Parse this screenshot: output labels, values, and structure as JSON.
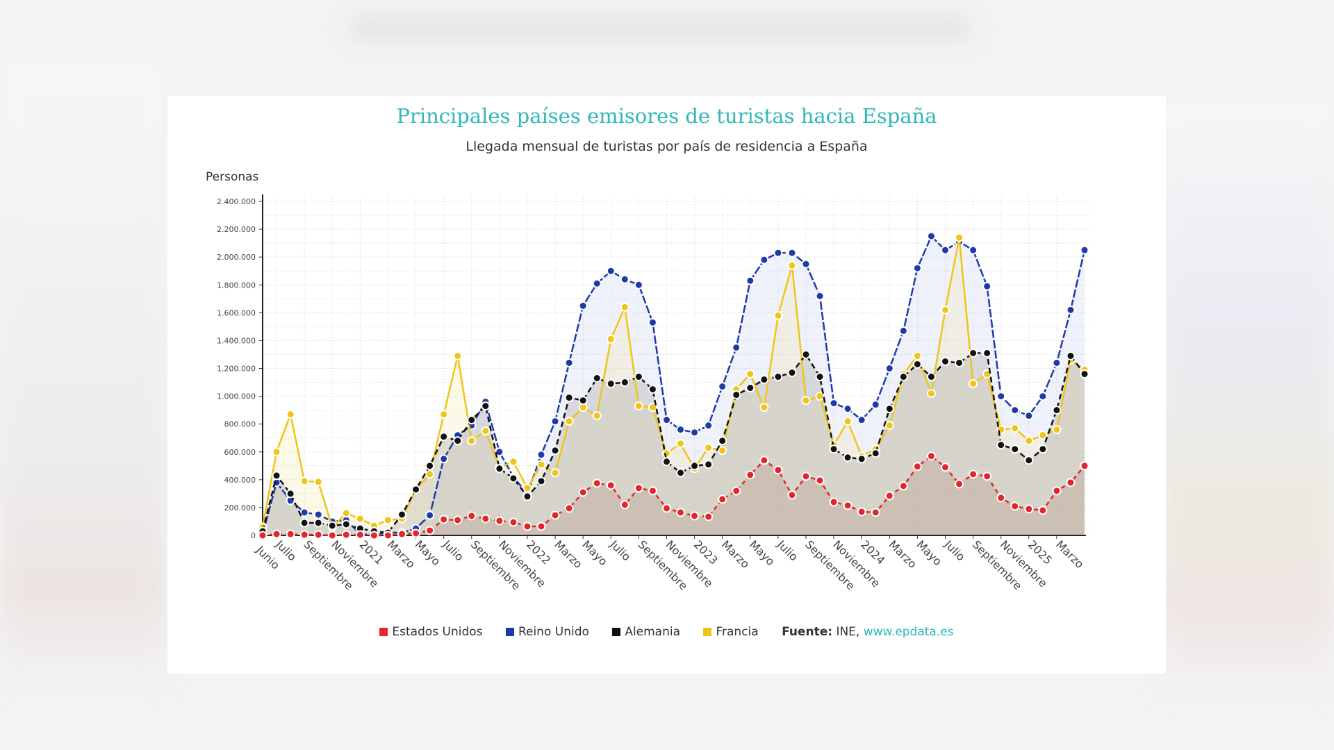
{
  "chart_data": {
    "type": "area",
    "title": "Principales países emisores de turistas hacia España",
    "subtitle": "Llegada mensual de turistas por país de residencia a España",
    "ylabel": "Personas",
    "xlabel": "",
    "ylim": [
      0,
      2400000
    ],
    "yticks": [
      "0",
      "200.000",
      "400.000",
      "600.000",
      "800.000",
      "1.000.000",
      "1.200.000",
      "1.400.000",
      "1.600.000",
      "1.800.000",
      "2.000.000",
      "2.200.000",
      "2.400.000"
    ],
    "grid": true,
    "legend_position": "bottom",
    "x": [
      "2020-06",
      "2020-07",
      "2020-08",
      "2020-09",
      "2020-10",
      "2020-11",
      "2020-12",
      "2021-01",
      "2021-02",
      "2021-03",
      "2021-04",
      "2021-05",
      "2021-06",
      "2021-07",
      "2021-08",
      "2021-09",
      "2021-10",
      "2021-11",
      "2021-12",
      "2022-01",
      "2022-02",
      "2022-03",
      "2022-04",
      "2022-05",
      "2022-06",
      "2022-07",
      "2022-08",
      "2022-09",
      "2022-10",
      "2022-11",
      "2022-12",
      "2023-01",
      "2023-02",
      "2023-03",
      "2023-04",
      "2023-05",
      "2023-06",
      "2023-07",
      "2023-08",
      "2023-09",
      "2023-10",
      "2023-11",
      "2023-12",
      "2024-01",
      "2024-02",
      "2024-03",
      "2024-04",
      "2024-05",
      "2024-06",
      "2024-07",
      "2024-08",
      "2024-09",
      "2024-10",
      "2024-11",
      "2024-12",
      "2025-01",
      "2025-02",
      "2025-03",
      "2025-04",
      "2025-05"
    ],
    "x_tick_labels": {
      "2020-06": "Junio",
      "2020-07": "Julio",
      "2020-09": "Septiembre",
      "2020-11": "Noviembre",
      "2021-01": "2021",
      "2021-03": "Marzo",
      "2021-05": "Mayo",
      "2021-07": "Julio",
      "2021-09": "Septiembre",
      "2021-11": "Noviembre",
      "2022-01": "2022",
      "2022-03": "Marzo",
      "2022-05": "Mayo",
      "2022-07": "Julio",
      "2022-09": "Septiembre",
      "2022-11": "Noviembre",
      "2023-01": "2023",
      "2023-03": "Marzo",
      "2023-05": "Mayo",
      "2023-07": "Julio",
      "2023-09": "Septiembre",
      "2023-11": "Noviembre",
      "2024-01": "2024",
      "2024-03": "Marzo",
      "2024-05": "Mayo",
      "2024-07": "Julio",
      "2024-09": "Septiembre",
      "2024-11": "Noviembre",
      "2025-01": "2025",
      "2025-03": "Marzo"
    },
    "series": [
      {
        "name": "Reino Unido",
        "color": "#1f3aa8",
        "values": [
          10000,
          380000,
          250000,
          165000,
          150000,
          100000,
          110000,
          10000,
          5000,
          20000,
          20000,
          50000,
          145000,
          550000,
          720000,
          790000,
          960000,
          600000,
          420000,
          300000,
          580000,
          820000,
          1240000,
          1650000,
          1810000,
          1900000,
          1840000,
          1800000,
          1530000,
          830000,
          760000,
          740000,
          790000,
          1070000,
          1350000,
          1830000,
          1980000,
          2030000,
          2030000,
          1950000,
          1720000,
          950000,
          910000,
          830000,
          940000,
          1200000,
          1470000,
          1920000,
          2150000,
          2050000,
          2110000,
          2050000,
          1790000,
          1000000,
          900000,
          860000,
          1000000,
          1240000,
          1620000,
          2050000
        ]
      },
      {
        "name": "Francia",
        "color": "#f0c419",
        "values": [
          60000,
          600000,
          870000,
          390000,
          385000,
          60000,
          160000,
          120000,
          70000,
          110000,
          120000,
          330000,
          440000,
          870000,
          1290000,
          680000,
          750000,
          490000,
          530000,
          340000,
          510000,
          450000,
          820000,
          920000,
          860000,
          1410000,
          1640000,
          930000,
          920000,
          590000,
          660000,
          480000,
          630000,
          610000,
          1050000,
          1160000,
          920000,
          1580000,
          1940000,
          970000,
          1000000,
          650000,
          820000,
          570000,
          620000,
          790000,
          1160000,
          1290000,
          1020000,
          1620000,
          2140000,
          1090000,
          1160000,
          760000,
          770000,
          680000,
          720000,
          760000,
          1260000,
          1190000
        ]
      },
      {
        "name": "Alemania",
        "color": "#111111",
        "values": [
          30000,
          430000,
          300000,
          90000,
          90000,
          70000,
          80000,
          50000,
          30000,
          20000,
          150000,
          330000,
          500000,
          710000,
          680000,
          830000,
          930000,
          480000,
          410000,
          280000,
          390000,
          610000,
          990000,
          970000,
          1130000,
          1090000,
          1100000,
          1140000,
          1050000,
          530000,
          450000,
          500000,
          510000,
          680000,
          1010000,
          1060000,
          1120000,
          1140000,
          1170000,
          1300000,
          1140000,
          620000,
          560000,
          550000,
          590000,
          910000,
          1140000,
          1230000,
          1140000,
          1250000,
          1240000,
          1310000,
          1310000,
          650000,
          620000,
          540000,
          620000,
          900000,
          1290000,
          1160000
        ]
      },
      {
        "name": "Estados Unidos",
        "color": "#e3262a",
        "values": [
          0,
          10000,
          10000,
          5000,
          5000,
          0,
          5000,
          5000,
          0,
          0,
          10000,
          15000,
          35000,
          115000,
          110000,
          140000,
          120000,
          105000,
          95000,
          65000,
          65000,
          145000,
          195000,
          310000,
          375000,
          360000,
          220000,
          340000,
          320000,
          195000,
          165000,
          140000,
          135000,
          260000,
          320000,
          435000,
          540000,
          470000,
          290000,
          425000,
          395000,
          240000,
          215000,
          170000,
          165000,
          285000,
          355000,
          495000,
          570000,
          490000,
          370000,
          440000,
          425000,
          270000,
          210000,
          190000,
          180000,
          320000,
          380000,
          500000
        ]
      }
    ]
  },
  "legend": {
    "items": [
      "Estados Unidos",
      "Reino Unido",
      "Alemania",
      "Francia"
    ],
    "colors": [
      "#e3262a",
      "#1f3aa8",
      "#111111",
      "#f0c419"
    ],
    "source_label": "Fuente:",
    "source_text": "INE,",
    "source_link": "www.epdata.es"
  }
}
